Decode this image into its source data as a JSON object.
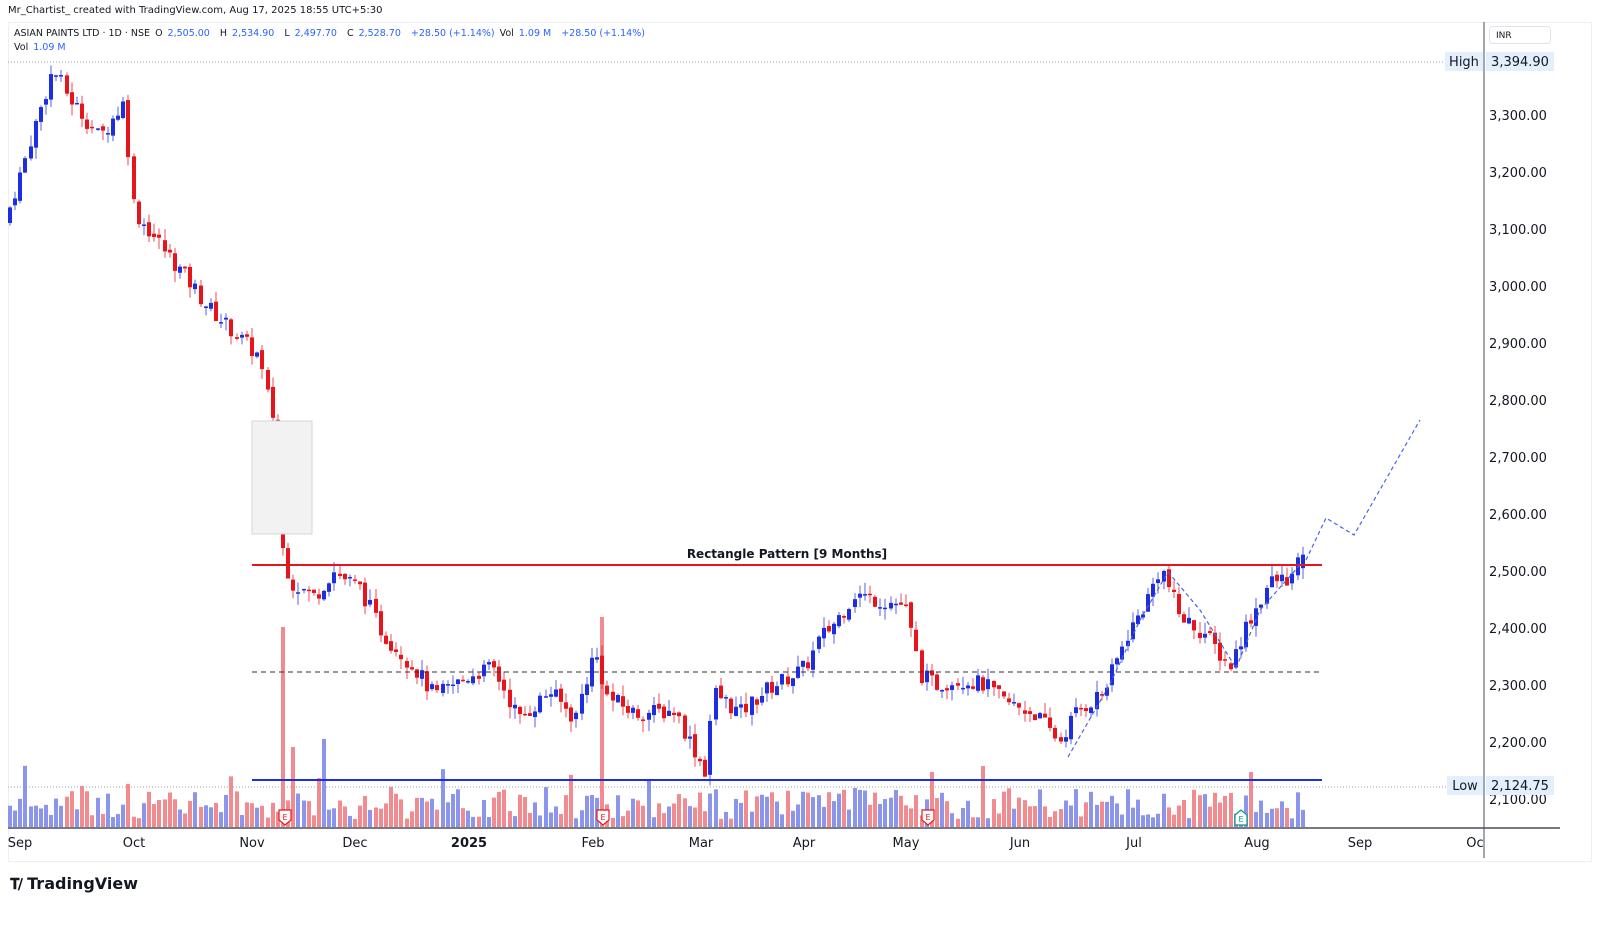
{
  "credit": "Mr_Chartist_ created with TradingView.com, Aug 17, 2025 18:55 UTC+5:30",
  "legend": {
    "symbol": "ASIAN PAINTS LTD · 1D · NSE",
    "open_label": "O",
    "open": "2,505.00",
    "high_label": "H",
    "high": "2,534.90",
    "low_label": "L",
    "low": "2,497.70",
    "close_label": "C",
    "close": "2,528.70",
    "change": "+28.50 (+1.14%)",
    "vol_label": "Vol",
    "vol": "1.09 M",
    "vol_change": "+28.50 (+1.14%)",
    "vol2_label": "Vol",
    "vol2": "1.09 M"
  },
  "price_axis": {
    "currency": "INR",
    "ticks": [
      "3,300.00",
      "3,200.00",
      "3,100.00",
      "3,000.00",
      "2,900.00",
      "2,800.00",
      "2,700.00",
      "2,600.00",
      "2,500.00",
      "2,400.00",
      "2,300.00",
      "2,200.00",
      "2,100.00"
    ],
    "high_label": "High",
    "high_value": "3,394.90",
    "low_label": "Low",
    "low_value": "2,124.75"
  },
  "time_axis": [
    "Sep",
    "Oct",
    "Nov",
    "Dec",
    "2025",
    "Feb",
    "Mar",
    "Apr",
    "May",
    "Jun",
    "Jul",
    "Aug",
    "Sep",
    "Oc"
  ],
  "annotation": "Rectangle Pattern [9 Months]",
  "brand": "TradingView",
  "colors": {
    "up": "#1d2ee0",
    "down": "#e8141c",
    "up_vol": "#8c95ec",
    "down_vol": "#f28b8f",
    "resistance": "#e8141c",
    "support": "#1d2ee0",
    "projection": "#4a63e6"
  },
  "chart_data": {
    "type": "candlestick",
    "title": "ASIAN PAINTS LTD · 1D · NSE",
    "ylabel": "INR",
    "ylim": [
      2040,
      3460
    ],
    "x_ticks": [
      "Sep",
      "Oct",
      "Nov",
      "Dec",
      "2025",
      "Feb",
      "Mar",
      "Apr",
      "May",
      "Jun",
      "Jul",
      "Aug",
      "Sep",
      "Oc"
    ],
    "last_bar": {
      "open": 2505.0,
      "high": 2534.9,
      "low": 2497.7,
      "close": 2528.7,
      "change": 28.5,
      "change_pct": 1.14,
      "volume": "1.09M"
    },
    "all_time_visible_high": 3394.9,
    "visible_low": 2124.75,
    "levels": {
      "rectangle_resistance": 2510,
      "rectangle_mid_dashed": 2320,
      "rectangle_support": 2133
    },
    "pattern": "Rectangle Pattern [9 Months]",
    "projection_path": [
      [
        2528,
        "Aug 14"
      ],
      [
        2595,
        "Aug 22"
      ],
      [
        2560,
        "Aug 28"
      ],
      [
        2770,
        "Sep 18"
      ]
    ],
    "closes_approx": [
      {
        "date": "Sep 2024",
        "price": 3110
      },
      {
        "date": "mid Sep",
        "price": 3380
      },
      {
        "date": "Oct 1",
        "price": 3290
      },
      {
        "date": "mid Oct",
        "price": 3020
      },
      {
        "date": "Nov 1",
        "price": 2880
      },
      {
        "date": "Nov 8",
        "price": 2760
      },
      {
        "date": "Nov 13",
        "price": 2500
      },
      {
        "date": "Dec 1",
        "price": 2470
      },
      {
        "date": "mid Dec",
        "price": 2380
      },
      {
        "date": "2025 Jan 1",
        "price": 2290
      },
      {
        "date": "Jan 15",
        "price": 2300
      },
      {
        "date": "Feb 1",
        "price": 2360
      },
      {
        "date": "mid Feb",
        "price": 2250
      },
      {
        "date": "Mar 1",
        "price": 2150
      },
      {
        "date": "mid Mar",
        "price": 2270
      },
      {
        "date": "Apr 1",
        "price": 2330
      },
      {
        "date": "mid Apr",
        "price": 2430
      },
      {
        "date": "May 1",
        "price": 2420
      },
      {
        "date": "mid May",
        "price": 2310
      },
      {
        "date": "Jun 1",
        "price": 2270
      },
      {
        "date": "Jun 15",
        "price": 2200
      },
      {
        "date": "Jul 1",
        "price": 2330
      },
      {
        "date": "Jul 10",
        "price": 2510
      },
      {
        "date": "Jul 25",
        "price": 2350
      },
      {
        "date": "Aug 1",
        "price": 2390
      },
      {
        "date": "Aug 14",
        "price": 2528.7
      }
    ]
  }
}
